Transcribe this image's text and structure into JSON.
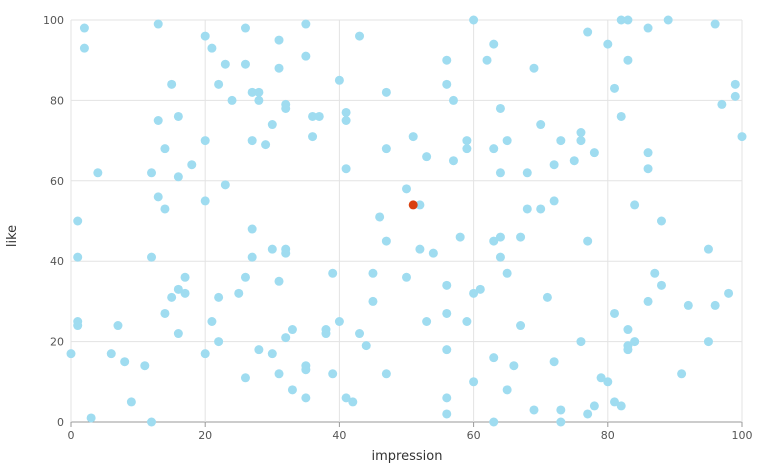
{
  "chart_data": {
    "type": "scatter",
    "title": "",
    "xlabel": "impression",
    "ylabel": "like",
    "xlim": [
      0,
      100
    ],
    "ylim": [
      0,
      100
    ],
    "xticks": [
      "0",
      "20",
      "40",
      "60",
      "80",
      "100"
    ],
    "yticks": [
      "0",
      "20",
      "40",
      "60",
      "80",
      "100"
    ],
    "grid": true,
    "colors": {
      "point": "#9fdcf0",
      "highlight": "#d9400f",
      "grid": "#e3e3e3",
      "axis": "#999999"
    },
    "highlight": {
      "x": 51,
      "y": 54
    },
    "points": [
      [
        2,
        98
      ],
      [
        2,
        93
      ],
      [
        13,
        99
      ],
      [
        20,
        96
      ],
      [
        21,
        93
      ],
      [
        23,
        89
      ],
      [
        26,
        98
      ],
      [
        26,
        89
      ],
      [
        31,
        95
      ],
      [
        31,
        88
      ],
      [
        35,
        99
      ],
      [
        35,
        91
      ],
      [
        43,
        96
      ],
      [
        22,
        84
      ],
      [
        15,
        84
      ],
      [
        24,
        80
      ],
      [
        27,
        82
      ],
      [
        28,
        82
      ],
      [
        28,
        80
      ],
      [
        32,
        79
      ],
      [
        32,
        78
      ],
      [
        36,
        76
      ],
      [
        37,
        76
      ],
      [
        40,
        85
      ],
      [
        41,
        77
      ],
      [
        41,
        75
      ],
      [
        47,
        82
      ],
      [
        13,
        75
      ],
      [
        16,
        76
      ],
      [
        30,
        74
      ],
      [
        36,
        71
      ],
      [
        27,
        70
      ],
      [
        20,
        70
      ],
      [
        29,
        69
      ],
      [
        14,
        68
      ],
      [
        18,
        64
      ],
      [
        16,
        61
      ],
      [
        12,
        62
      ],
      [
        4,
        62
      ],
      [
        23,
        59
      ],
      [
        13,
        56
      ],
      [
        14,
        53
      ],
      [
        20,
        55
      ],
      [
        1,
        50
      ],
      [
        27,
        48
      ],
      [
        1,
        41
      ],
      [
        12,
        41
      ],
      [
        27,
        41
      ],
      [
        30,
        43
      ],
      [
        32,
        43
      ],
      [
        32,
        42
      ],
      [
        17,
        36
      ],
      [
        26,
        36
      ],
      [
        16,
        33
      ],
      [
        15,
        31
      ],
      [
        17,
        32
      ],
      [
        22,
        31
      ],
      [
        25,
        32
      ],
      [
        31,
        35
      ],
      [
        14,
        27
      ],
      [
        21,
        25
      ],
      [
        1,
        25
      ],
      [
        1,
        24
      ],
      [
        7,
        24
      ],
      [
        16,
        22
      ],
      [
        22,
        20
      ],
      [
        20,
        17
      ],
      [
        6,
        17
      ],
      [
        0,
        17
      ],
      [
        8,
        15
      ],
      [
        11,
        14
      ],
      [
        26,
        11
      ],
      [
        9,
        5
      ],
      [
        3,
        1
      ],
      [
        12,
        0
      ],
      [
        28,
        18
      ],
      [
        30,
        17
      ],
      [
        32,
        21
      ],
      [
        33,
        23
      ],
      [
        31,
        12
      ],
      [
        33,
        8
      ],
      [
        35,
        14
      ],
      [
        35,
        13
      ],
      [
        35,
        6
      ],
      [
        38,
        23
      ],
      [
        38,
        22
      ],
      [
        40,
        25
      ],
      [
        39,
        37
      ],
      [
        39,
        12
      ],
      [
        41,
        6
      ],
      [
        42,
        5
      ],
      [
        43,
        22
      ],
      [
        44,
        19
      ],
      [
        45,
        37
      ],
      [
        45,
        30
      ],
      [
        47,
        45
      ],
      [
        46,
        51
      ],
      [
        47,
        68
      ],
      [
        41,
        63
      ],
      [
        47,
        12
      ],
      [
        51,
        71
      ],
      [
        53,
        66
      ],
      [
        50,
        58
      ],
      [
        52,
        54
      ],
      [
        52,
        43
      ],
      [
        54,
        42
      ],
      [
        50,
        36
      ],
      [
        53,
        25
      ],
      [
        56,
        34
      ],
      [
        56,
        27
      ],
      [
        56,
        18
      ],
      [
        56,
        6
      ],
      [
        56,
        2
      ],
      [
        57,
        65
      ],
      [
        57,
        80
      ],
      [
        56,
        84
      ],
      [
        56,
        90
      ],
      [
        60,
        100
      ],
      [
        62,
        90
      ],
      [
        63,
        94
      ],
      [
        59,
        70
      ],
      [
        59,
        68
      ],
      [
        63,
        68
      ],
      [
        64,
        78
      ],
      [
        65,
        70
      ],
      [
        64,
        62
      ],
      [
        58,
        46
      ],
      [
        63,
        45
      ],
      [
        64,
        46
      ],
      [
        64,
        41
      ],
      [
        65,
        37
      ],
      [
        60,
        32
      ],
      [
        61,
        33
      ],
      [
        59,
        25
      ],
      [
        67,
        46
      ],
      [
        68,
        62
      ],
      [
        68,
        53
      ],
      [
        70,
        53
      ],
      [
        70,
        74
      ],
      [
        72,
        64
      ],
      [
        72,
        55
      ],
      [
        69,
        88
      ],
      [
        73,
        70
      ],
      [
        75,
        65
      ],
      [
        76,
        72
      ],
      [
        76,
        70
      ],
      [
        78,
        67
      ],
      [
        77,
        97
      ],
      [
        77,
        45
      ],
      [
        71,
        31
      ],
      [
        67,
        24
      ],
      [
        66,
        14
      ],
      [
        63,
        16
      ],
      [
        65,
        8
      ],
      [
        60,
        10
      ],
      [
        63,
        0
      ],
      [
        69,
        3
      ],
      [
        72,
        15
      ],
      [
        73,
        3
      ],
      [
        73,
        0
      ],
      [
        76,
        20
      ],
      [
        77,
        2
      ],
      [
        78,
        4
      ],
      [
        79,
        11
      ],
      [
        80,
        10
      ],
      [
        81,
        5
      ],
      [
        82,
        4
      ],
      [
        81,
        27
      ],
      [
        83,
        23
      ],
      [
        83,
        19
      ],
      [
        83,
        18
      ],
      [
        84,
        20
      ],
      [
        86,
        30
      ],
      [
        87,
        37
      ],
      [
        88,
        34
      ],
      [
        88,
        50
      ],
      [
        84,
        54
      ],
      [
        86,
        63
      ],
      [
        86,
        67
      ],
      [
        82,
        76
      ],
      [
        81,
        83
      ],
      [
        80,
        94
      ],
      [
        82,
        100
      ],
      [
        83,
        100
      ],
      [
        83,
        90
      ],
      [
        86,
        98
      ],
      [
        89,
        100
      ],
      [
        96,
        99
      ],
      [
        97,
        79
      ],
      [
        99,
        84
      ],
      [
        99,
        81
      ],
      [
        100,
        71
      ],
      [
        95,
        43
      ],
      [
        98,
        32
      ],
      [
        96,
        29
      ],
      [
        92,
        29
      ],
      [
        95,
        20
      ],
      [
        91,
        12
      ]
    ]
  }
}
